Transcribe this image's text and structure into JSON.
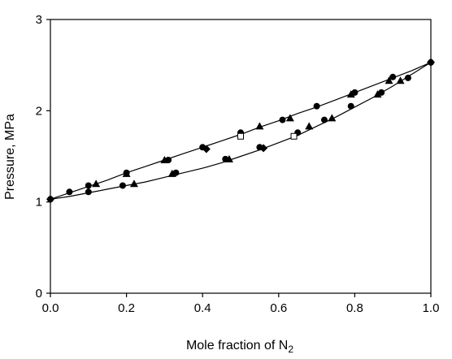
{
  "chart_data": {
    "type": "scatter",
    "xlabel": "Mole fraction of N",
    "xlabel_subscript": "2",
    "ylabel": "Pressure, MPa",
    "xlim": [
      0.0,
      1.0
    ],
    "ylim": [
      0,
      3
    ],
    "x_ticks": [
      "0.0",
      "0.2",
      "0.4",
      "0.6",
      "0.8",
      "1.0"
    ],
    "y_ticks": [
      "0",
      "1",
      "2",
      "3"
    ],
    "grid": false,
    "curves": [
      {
        "x": [
          0.0,
          0.05,
          0.1,
          0.15,
          0.2,
          0.25,
          0.3,
          0.35,
          0.4,
          0.45,
          0.5,
          0.55,
          0.6,
          0.65,
          0.7,
          0.75,
          0.8,
          0.85,
          0.9,
          0.95,
          1.0
        ],
        "y": [
          1.03,
          1.1,
          1.17,
          1.24,
          1.32,
          1.39,
          1.46,
          1.53,
          1.6,
          1.67,
          1.74,
          1.82,
          1.89,
          1.97,
          2.04,
          2.12,
          2.2,
          2.28,
          2.36,
          2.44,
          2.53
        ]
      },
      {
        "x": [
          0.0,
          0.05,
          0.1,
          0.15,
          0.2,
          0.25,
          0.3,
          0.35,
          0.4,
          0.45,
          0.5,
          0.55,
          0.6,
          0.65,
          0.7,
          0.75,
          0.8,
          0.85,
          0.9,
          0.95,
          1.0
        ],
        "y": [
          1.03,
          1.06,
          1.1,
          1.14,
          1.18,
          1.22,
          1.27,
          1.32,
          1.37,
          1.43,
          1.5,
          1.57,
          1.65,
          1.73,
          1.83,
          1.93,
          2.04,
          2.15,
          2.27,
          2.4,
          2.53
        ]
      }
    ],
    "series": [
      {
        "marker": "circle",
        "color": "#000000",
        "points": [
          [
            0.0,
            1.03
          ],
          [
            0.05,
            1.11
          ],
          [
            0.1,
            1.18
          ],
          [
            0.2,
            1.32
          ],
          [
            0.31,
            1.46
          ],
          [
            0.4,
            1.6
          ],
          [
            0.5,
            1.76
          ],
          [
            0.61,
            1.9
          ],
          [
            0.7,
            2.05
          ],
          [
            0.8,
            2.2
          ],
          [
            0.9,
            2.37
          ],
          [
            1.0,
            2.53
          ],
          [
            0.1,
            1.11
          ],
          [
            0.19,
            1.18
          ],
          [
            0.33,
            1.32
          ],
          [
            0.46,
            1.47
          ],
          [
            0.55,
            1.6
          ],
          [
            0.65,
            1.76
          ],
          [
            0.72,
            1.9
          ],
          [
            0.79,
            2.05
          ],
          [
            0.87,
            2.2
          ],
          [
            0.94,
            2.36
          ]
        ]
      },
      {
        "marker": "triangle",
        "color": "#000000",
        "points": [
          [
            0.12,
            1.2
          ],
          [
            0.2,
            1.31
          ],
          [
            0.3,
            1.46
          ],
          [
            0.55,
            1.83
          ],
          [
            0.63,
            1.92
          ],
          [
            0.79,
            2.18
          ],
          [
            0.89,
            2.33
          ],
          [
            0.22,
            1.2
          ],
          [
            0.32,
            1.31
          ],
          [
            0.47,
            1.47
          ],
          [
            0.68,
            1.83
          ],
          [
            0.74,
            1.92
          ],
          [
            0.86,
            2.18
          ],
          [
            0.92,
            2.33
          ]
        ]
      },
      {
        "marker": "diamond",
        "color": "#000000",
        "points": [
          [
            0.0,
            1.03
          ],
          [
            0.41,
            1.58
          ],
          [
            0.56,
            1.59
          ],
          [
            1.0,
            2.53
          ]
        ]
      },
      {
        "marker": "square-open",
        "color": "#000000",
        "points": [
          [
            0.5,
            1.72
          ],
          [
            0.64,
            1.72
          ]
        ]
      }
    ]
  }
}
